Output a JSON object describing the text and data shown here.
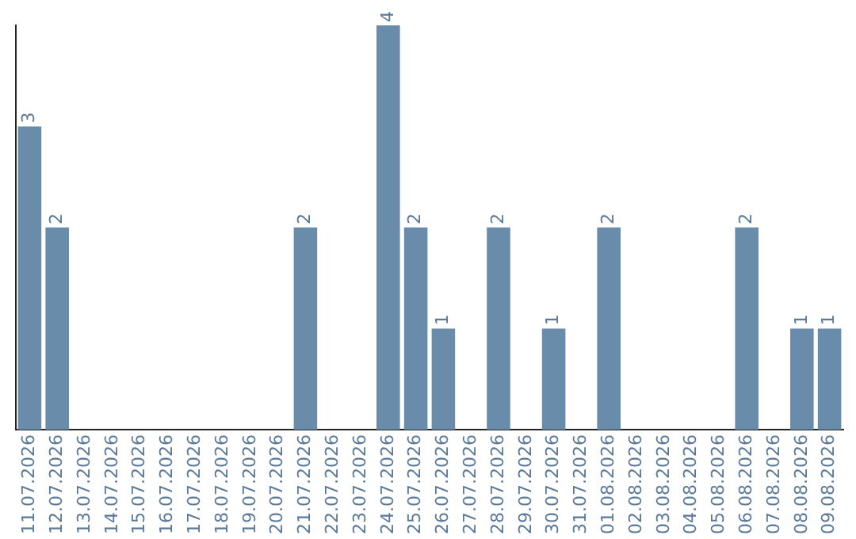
{
  "chart_data": {
    "type": "bar",
    "categories": [
      "11.07.2026",
      "12.07.2026",
      "13.07.2026",
      "14.07.2026",
      "15.07.2026",
      "16.07.2026",
      "17.07.2026",
      "18.07.2026",
      "19.07.2026",
      "20.07.2026",
      "21.07.2026",
      "22.07.2026",
      "23.07.2026",
      "24.07.2026",
      "25.07.2026",
      "26.07.2026",
      "27.07.2026",
      "28.07.2026",
      "29.07.2026",
      "30.07.2026",
      "31.07.2026",
      "01.08.2026",
      "02.08.2026",
      "03.08.2026",
      "04.08.2026",
      "05.08.2026",
      "06.08.2026",
      "07.08.2026",
      "08.08.2026",
      "09.08.2026"
    ],
    "values": [
      3,
      2,
      0,
      0,
      0,
      0,
      0,
      0,
      0,
      0,
      2,
      0,
      0,
      4,
      2,
      1,
      0,
      2,
      0,
      1,
      0,
      2,
      0,
      0,
      0,
      0,
      2,
      0,
      1,
      1
    ],
    "value_labels": [
      "3",
      "2",
      null,
      null,
      null,
      null,
      null,
      null,
      null,
      null,
      "2",
      null,
      null,
      "4",
      "2",
      "1",
      null,
      "2",
      null,
      "1",
      null,
      "2",
      null,
      null,
      null,
      null,
      "2",
      null,
      "1",
      "1"
    ],
    "color": "#6a8cab",
    "ylim": [
      0,
      4
    ],
    "tick_labels": "x",
    "grid": false,
    "legend": false
  }
}
